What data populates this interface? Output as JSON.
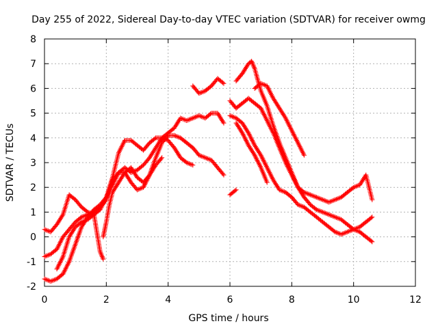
{
  "chart_data": {
    "type": "scatter",
    "title": "Day 255 of 2022, Sidereal Day-to-day VTEC variation (SDTVAR) for receiver owmg",
    "xlabel": "GPS time / hours",
    "ylabel": "SDTVAR / TECUs",
    "xlim": [
      0,
      12
    ],
    "ylim": [
      -2,
      8
    ],
    "xticks": [
      "0",
      "2",
      "4",
      "6",
      "8",
      "10",
      "12"
    ],
    "yticks": [
      "-2",
      "-1",
      "0",
      "1",
      "2",
      "3",
      "4",
      "5",
      "6",
      "7",
      "8"
    ],
    "grid": true,
    "marker": "+",
    "color": "#ff0000",
    "series": [
      {
        "name": "track-1",
        "x": [
          0.0,
          0.2,
          0.4,
          0.6,
          0.8,
          1.0,
          1.2,
          1.4,
          1.6,
          1.8,
          2.0,
          2.2,
          2.4,
          2.6,
          2.8,
          3.0,
          3.2,
          3.4,
          3.6,
          3.8,
          4.0,
          4.2,
          4.4,
          4.6,
          4.8
        ],
        "y": [
          0.3,
          0.2,
          0.5,
          0.9,
          1.7,
          1.5,
          1.2,
          1.0,
          0.9,
          1.1,
          1.6,
          2.4,
          3.4,
          3.9,
          3.9,
          3.7,
          3.5,
          3.8,
          4.0,
          4.0,
          3.9,
          3.6,
          3.2,
          3.0,
          2.9
        ]
      },
      {
        "name": "track-2",
        "x": [
          0.0,
          0.2,
          0.4,
          0.6,
          0.8,
          1.0,
          1.2,
          1.4,
          1.6,
          1.8,
          2.0,
          2.2,
          2.4,
          2.6,
          2.8,
          3.0,
          3.2,
          3.4,
          3.6,
          3.8,
          4.0,
          4.2,
          4.4,
          4.6,
          4.8,
          5.0,
          5.2,
          5.4,
          5.6,
          5.8
        ],
        "y": [
          -0.8,
          -0.7,
          -0.5,
          0.0,
          0.3,
          0.6,
          0.8,
          0.9,
          1.0,
          1.2,
          1.5,
          2.3,
          2.6,
          2.8,
          2.6,
          2.7,
          2.9,
          3.2,
          3.6,
          4.0,
          4.2,
          4.4,
          4.8,
          4.7,
          4.8,
          4.9,
          4.8,
          5.0,
          5.0,
          4.6
        ]
      },
      {
        "name": "track-3",
        "x": [
          0.0,
          0.2,
          0.4,
          0.6,
          0.8,
          1.0,
          1.2,
          1.4,
          1.6,
          1.8,
          2.0,
          2.2,
          2.4,
          2.6,
          2.8,
          3.0,
          3.2,
          3.4,
          3.6,
          3.8,
          4.0,
          4.2,
          4.4,
          4.6,
          4.8,
          5.0,
          5.2,
          5.4,
          5.6,
          5.8
        ],
        "y": [
          -1.7,
          -1.8,
          -1.7,
          -1.5,
          -1.0,
          -0.3,
          0.4,
          0.8,
          1.1,
          1.3,
          1.6,
          2.1,
          2.6,
          2.6,
          2.2,
          1.9,
          2.0,
          2.5,
          3.2,
          3.8,
          4.1,
          4.1,
          4.0,
          3.8,
          3.6,
          3.3,
          3.2,
          3.1,
          2.8,
          2.5
        ]
      },
      {
        "name": "track-4",
        "x": [
          0.4,
          0.6,
          0.8,
          1.0,
          1.2,
          1.4,
          1.6,
          1.8,
          1.9
        ],
        "y": [
          -1.3,
          -0.8,
          0.0,
          0.4,
          0.6,
          0.7,
          0.9,
          -0.6,
          -0.9
        ]
      },
      {
        "name": "track-5",
        "x": [
          1.9,
          2.0,
          2.1,
          2.2,
          2.4,
          2.6,
          2.8,
          3.0,
          3.2,
          3.4,
          3.6,
          3.8
        ],
        "y": [
          0.0,
          0.6,
          1.3,
          1.8,
          2.2,
          2.6,
          2.8,
          2.4,
          2.2,
          2.5,
          2.9,
          3.2
        ]
      },
      {
        "name": "track-6",
        "x": [
          4.8,
          5.0,
          5.2,
          5.4,
          5.6,
          5.8
        ],
        "y": [
          6.1,
          5.8,
          5.9,
          6.1,
          6.4,
          6.2
        ]
      },
      {
        "name": "track-7",
        "x": [
          6.0,
          6.2,
          6.4,
          6.6,
          6.8,
          7.0,
          7.2,
          7.4,
          7.6,
          7.8,
          8.0,
          8.2,
          8.4,
          8.6,
          8.8,
          9.0,
          9.2,
          9.4,
          9.6,
          9.8,
          10.0,
          10.2,
          10.4,
          10.6
        ],
        "y": [
          5.5,
          5.2,
          5.4,
          5.6,
          5.4,
          5.2,
          4.7,
          4.2,
          3.6,
          3.0,
          2.5,
          2.0,
          1.8,
          1.7,
          1.6,
          1.5,
          1.4,
          1.5,
          1.6,
          1.8,
          2.0,
          2.1,
          2.5,
          1.5
        ]
      },
      {
        "name": "track-8",
        "x": [
          6.2,
          6.4,
          6.6,
          6.7,
          6.8,
          7.0,
          7.2,
          7.4,
          7.6,
          7.8,
          8.0,
          8.2,
          8.4,
          8.6,
          8.8,
          9.0,
          9.2,
          9.4,
          9.6,
          9.8,
          10.0,
          10.2,
          10.4,
          10.6
        ],
        "y": [
          6.3,
          6.6,
          7.0,
          7.1,
          6.8,
          5.9,
          5.3,
          4.5,
          3.8,
          3.2,
          2.6,
          2.0,
          1.6,
          1.3,
          1.1,
          1.0,
          0.9,
          0.8,
          0.7,
          0.5,
          0.3,
          0.2,
          0.0,
          -0.2
        ]
      },
      {
        "name": "track-9",
        "x": [
          6.0,
          6.2,
          6.4,
          6.6,
          6.8,
          7.0,
          7.2,
          7.4,
          7.6,
          7.8,
          8.0,
          8.2,
          8.4,
          8.6,
          8.8,
          9.0,
          9.2,
          9.4,
          9.6,
          9.8,
          10.0,
          10.2,
          10.4,
          10.6
        ],
        "y": [
          4.9,
          4.8,
          4.6,
          4.2,
          3.7,
          3.3,
          2.8,
          2.3,
          1.9,
          1.8,
          1.6,
          1.3,
          1.2,
          1.0,
          0.8,
          0.6,
          0.4,
          0.2,
          0.1,
          0.2,
          0.3,
          0.4,
          0.6,
          0.8
        ]
      },
      {
        "name": "track-10",
        "x": [
          6.8,
          7.0,
          7.2,
          7.4,
          7.6,
          7.8,
          8.0,
          8.2,
          8.4
        ],
        "y": [
          6.0,
          6.2,
          6.1,
          5.6,
          5.2,
          4.8,
          4.3,
          3.8,
          3.3
        ]
      },
      {
        "name": "track-11",
        "x": [
          6.2,
          6.4,
          6.6,
          6.8,
          7.0,
          7.2
        ],
        "y": [
          4.6,
          4.2,
          3.7,
          3.3,
          2.8,
          2.2
        ]
      },
      {
        "name": "track-12",
        "x": [
          6.0,
          6.2
        ],
        "y": [
          1.7,
          1.9
        ]
      }
    ]
  }
}
